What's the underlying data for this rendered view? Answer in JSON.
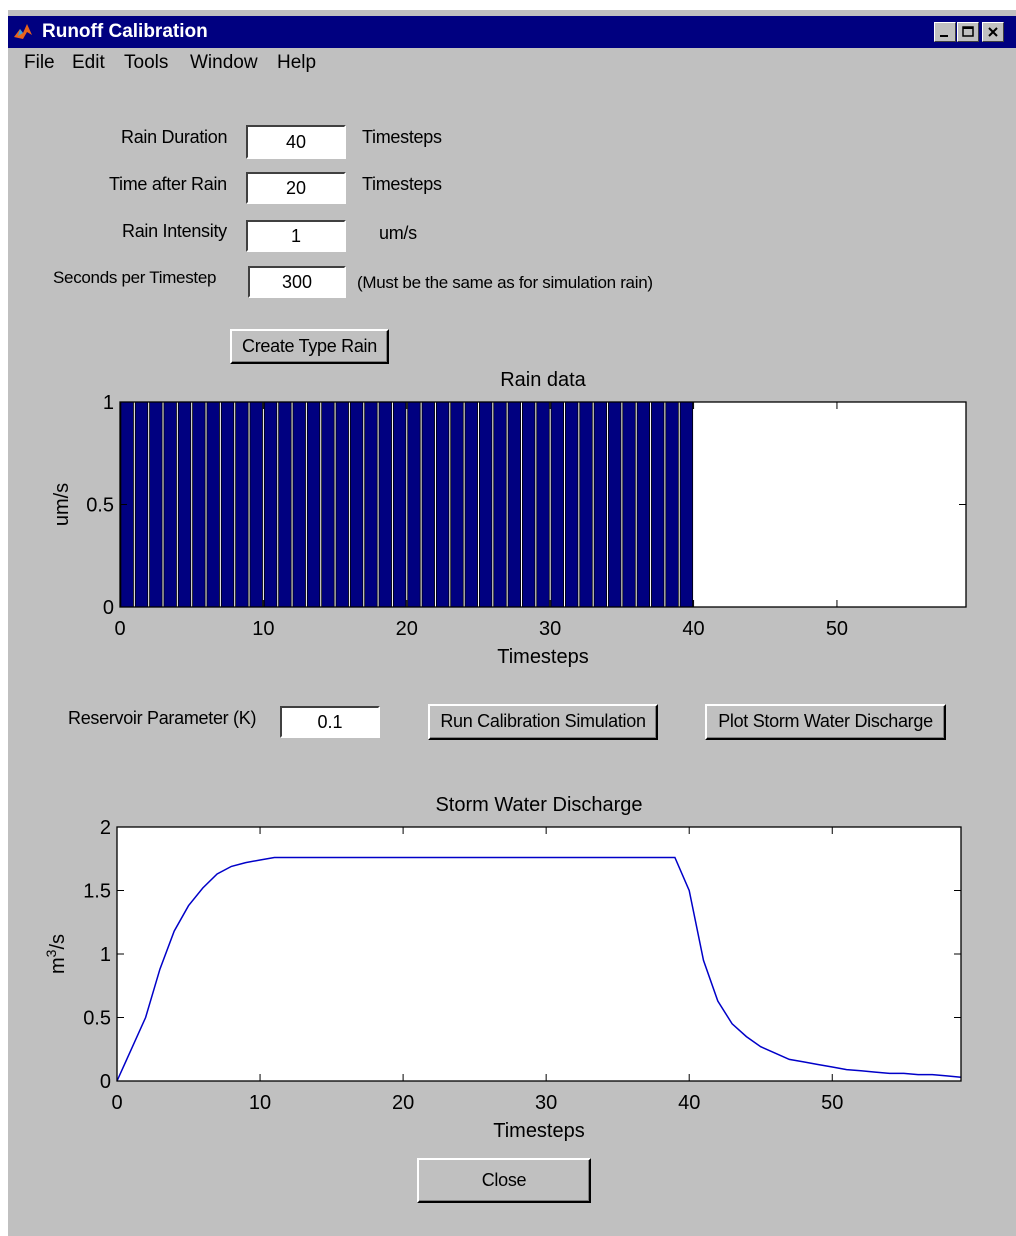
{
  "window": {
    "title": "Runoff Calibration"
  },
  "menu": [
    "File",
    "Edit",
    "Tools",
    "Window",
    "Help"
  ],
  "params": {
    "rain_duration": {
      "label": "Rain Duration",
      "value": "40",
      "unit": "Timesteps"
    },
    "time_after_rain": {
      "label": "Time after Rain",
      "value": "20",
      "unit": "Timesteps"
    },
    "rain_intensity": {
      "label": "Rain Intensity",
      "value": "1",
      "unit": "um/s"
    },
    "seconds_per_timestep": {
      "label": "Seconds per Timestep",
      "value": "300",
      "unit": "(Must be the same as for simulation rain)"
    }
  },
  "buttons": {
    "create_rain": "Create Type Rain",
    "run_sim": "Run Calibration Simulation",
    "plot_discharge": "Plot Storm Water Discharge",
    "close": "Close"
  },
  "reservoir": {
    "label": "Reservoir Parameter (K)",
    "value": "0.1"
  },
  "colors": {
    "window_bg": "#c0c0c0",
    "titlebar": "#000080",
    "series": "#000080"
  },
  "chart_data": [
    {
      "type": "bar",
      "title": "Rain data",
      "xlabel": "Timesteps",
      "ylabel": "um/s",
      "xlim": [
        0,
        59
      ],
      "ylim": [
        0,
        1
      ],
      "xticks": [
        0,
        10,
        20,
        30,
        40,
        50
      ],
      "yticks": [
        0,
        0.5,
        1
      ],
      "ytick_labels": [
        "0",
        "0.5",
        "1"
      ],
      "x": [
        0,
        1,
        2,
        3,
        4,
        5,
        6,
        7,
        8,
        9,
        10,
        11,
        12,
        13,
        14,
        15,
        16,
        17,
        18,
        19,
        20,
        21,
        22,
        23,
        24,
        25,
        26,
        27,
        28,
        29,
        30,
        31,
        32,
        33,
        34,
        35,
        36,
        37,
        38,
        39
      ],
      "values": [
        1,
        1,
        1,
        1,
        1,
        1,
        1,
        1,
        1,
        1,
        1,
        1,
        1,
        1,
        1,
        1,
        1,
        1,
        1,
        1,
        1,
        1,
        1,
        1,
        1,
        1,
        1,
        1,
        1,
        1,
        1,
        1,
        1,
        1,
        1,
        1,
        1,
        1,
        1,
        1
      ]
    },
    {
      "type": "line",
      "title": "Storm Water Discharge",
      "xlabel": "Timesteps",
      "ylabel": "m3/s",
      "xlim": [
        0,
        59
      ],
      "ylim": [
        0,
        2
      ],
      "xticks": [
        0,
        10,
        20,
        30,
        40,
        50
      ],
      "yticks": [
        0,
        0.5,
        1,
        1.5,
        2
      ],
      "ytick_labels": [
        "0",
        "0.5",
        "1",
        "1.5",
        "2"
      ],
      "x": [
        0,
        1,
        2,
        3,
        4,
        5,
        6,
        7,
        8,
        9,
        10,
        11,
        20,
        30,
        39,
        40,
        41,
        42,
        43,
        44,
        45,
        46,
        47,
        48,
        49,
        50,
        51,
        52,
        53,
        54,
        55,
        56,
        57,
        58,
        59
      ],
      "y": [
        0,
        0.25,
        0.5,
        0.88,
        1.18,
        1.38,
        1.52,
        1.63,
        1.69,
        1.72,
        1.74,
        1.76,
        1.76,
        1.76,
        1.76,
        1.5,
        0.95,
        0.63,
        0.45,
        0.35,
        0.27,
        0.22,
        0.17,
        0.15,
        0.13,
        0.11,
        0.09,
        0.08,
        0.07,
        0.06,
        0.06,
        0.05,
        0.05,
        0.04,
        0.03
      ]
    }
  ]
}
